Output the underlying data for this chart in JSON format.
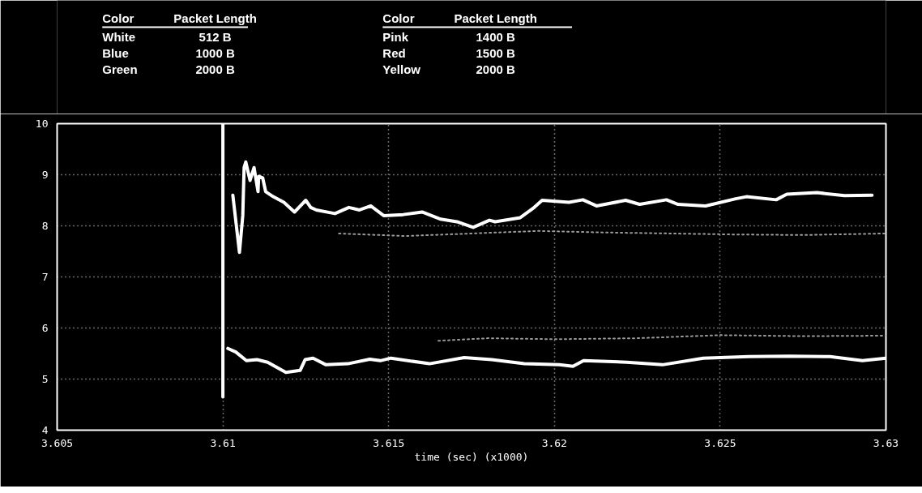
{
  "chart_data": {
    "type": "line",
    "xlabel": "time (sec) (x1000)",
    "xlim": [
      3.605,
      3.63
    ],
    "ylim": [
      4,
      10
    ],
    "xticks": [
      3.605,
      3.61,
      3.615,
      3.62,
      3.625,
      3.63
    ],
    "yticks": [
      4,
      5,
      6,
      7,
      8,
      9,
      10
    ],
    "grid": true,
    "line_style": "solid",
    "annotations": [
      "Color",
      "Packet Length",
      "White",
      "512 B",
      "Blue",
      "1000 B",
      "Green",
      "2000 B",
      "Color",
      "Packet Length",
      "Pink",
      "1400 B",
      "Red",
      "1500 B",
      "Yellow",
      "2000 B"
    ],
    "series": [
      {
        "color": "#ffffff",
        "x": [
          3.6103,
          3.6105,
          3.6106,
          3.61064,
          3.61069,
          3.61082,
          3.61094,
          3.61106,
          3.61108,
          3.6112,
          3.61129,
          3.61152,
          3.61184,
          3.61216,
          3.6125,
          3.61265,
          3.61282,
          3.61338,
          3.6138,
          3.61412,
          3.61446,
          3.61485,
          3.61544,
          3.61601,
          3.61657,
          3.61706,
          3.61755,
          3.61804,
          3.61821,
          3.61897,
          3.61939,
          3.61963,
          3.62044,
          3.62086,
          3.62127,
          3.62215,
          3.62257,
          3.62338,
          3.62373,
          3.62456,
          3.62547,
          3.62579,
          3.62669,
          3.62701,
          3.62792,
          3.62875,
          3.62958
        ],
        "values": [
          8.6,
          7.48,
          8.2,
          9.14,
          9.25,
          8.89,
          9.14,
          8.67,
          8.97,
          8.94,
          8.67,
          8.57,
          8.46,
          8.27,
          8.5,
          8.36,
          8.31,
          8.24,
          8.36,
          8.31,
          8.39,
          8.2,
          8.22,
          8.27,
          8.13,
          8.08,
          7.97,
          8.11,
          8.08,
          8.16,
          8.36,
          8.5,
          8.46,
          8.51,
          8.39,
          8.5,
          8.42,
          8.51,
          8.42,
          8.39,
          8.53,
          8.57,
          8.51,
          8.62,
          8.65,
          8.59,
          8.6
        ]
      },
      {
        "color": "#ffffff",
        "x": [
          3.61,
          3.61
        ],
        "values": [
          10,
          4.65
        ]
      },
      {
        "color": "#ffffff",
        "x": [
          3.61015,
          3.61039,
          3.61071,
          3.61103,
          3.61135,
          3.6119,
          3.61233,
          3.61248,
          3.61272,
          3.61311,
          3.61377,
          3.61443,
          3.61475,
          3.61507,
          3.61623,
          3.61728,
          3.61811,
          3.61909,
          3.62015,
          3.62056,
          3.62088,
          3.62218,
          3.62326,
          3.62449,
          3.62586,
          3.62708,
          3.62831,
          3.62929,
          3.63
        ],
        "values": [
          5.6,
          5.53,
          5.36,
          5.38,
          5.33,
          5.13,
          5.17,
          5.38,
          5.41,
          5.28,
          5.3,
          5.39,
          5.36,
          5.41,
          5.3,
          5.42,
          5.38,
          5.3,
          5.28,
          5.25,
          5.36,
          5.33,
          5.28,
          5.41,
          5.44,
          5.45,
          5.44,
          5.36,
          5.41
        ]
      },
      {
        "color": "#9a9a9a",
        "line_style": "dotted",
        "x": [
          3.6135,
          3.6155,
          3.6175,
          3.6195,
          3.6215,
          3.6235,
          3.6255,
          3.6275,
          3.63
        ],
        "values": [
          7.85,
          7.8,
          7.85,
          7.9,
          7.87,
          7.85,
          7.83,
          7.82,
          7.85
        ]
      },
      {
        "color": "#9a9a9a",
        "line_style": "dotted",
        "x": [
          3.6165,
          3.618,
          3.62,
          3.6225,
          3.625,
          3.6275,
          3.63
        ],
        "values": [
          5.75,
          5.8,
          5.78,
          5.8,
          5.86,
          5.84,
          5.85
        ]
      }
    ]
  }
}
